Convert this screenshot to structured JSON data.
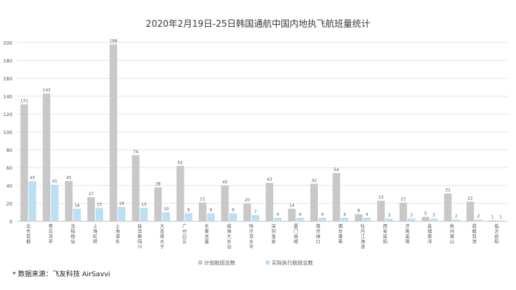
{
  "chart_data": {
    "type": "bar",
    "title": "2020年2月19日-25日韩国通航中国内地执飞航班量统计",
    "categories": [
      "北京首都",
      "青岛流亭",
      "沈阳桃仙",
      "上海虹桥",
      "上海浦东",
      "延吉朝阳川",
      "大连周水子",
      "广州白云",
      "长春龙嘉",
      "威海大水泊",
      "哈尔滨太平",
      "深圳宝安",
      "厦门高崎",
      "南京禄口",
      "烟台蓬莱",
      "牡丹江海浪",
      "西安咸阳",
      "济南遥墙",
      "盐城南洋",
      "杭州萧山",
      "成都双流",
      "临沂启阳"
    ],
    "series": [
      {
        "name": "计划航班总数",
        "color": "#c8c8c8",
        "values": [
          131,
          143,
          45,
          27,
          198,
          74,
          38,
          62,
          21,
          40,
          20,
          43,
          14,
          42,
          54,
          8,
          23,
          21,
          5,
          31,
          22,
          1
        ]
      },
      {
        "name": "实际执行航班总数",
        "color": "#bcdff3",
        "values": [
          45,
          41,
          14,
          15,
          16,
          15,
          10,
          9,
          9,
          9,
          7,
          4,
          4,
          4,
          4,
          4,
          3,
          3,
          3,
          2,
          2,
          1
        ]
      }
    ],
    "ylim": [
      0,
      200
    ],
    "yticks": [
      0,
      20,
      40,
      60,
      80,
      100,
      120,
      140,
      160,
      180,
      200
    ],
    "grid": true,
    "legend": "bottom"
  },
  "footnote": "* 数据来源：飞友科技 AirSavvi"
}
